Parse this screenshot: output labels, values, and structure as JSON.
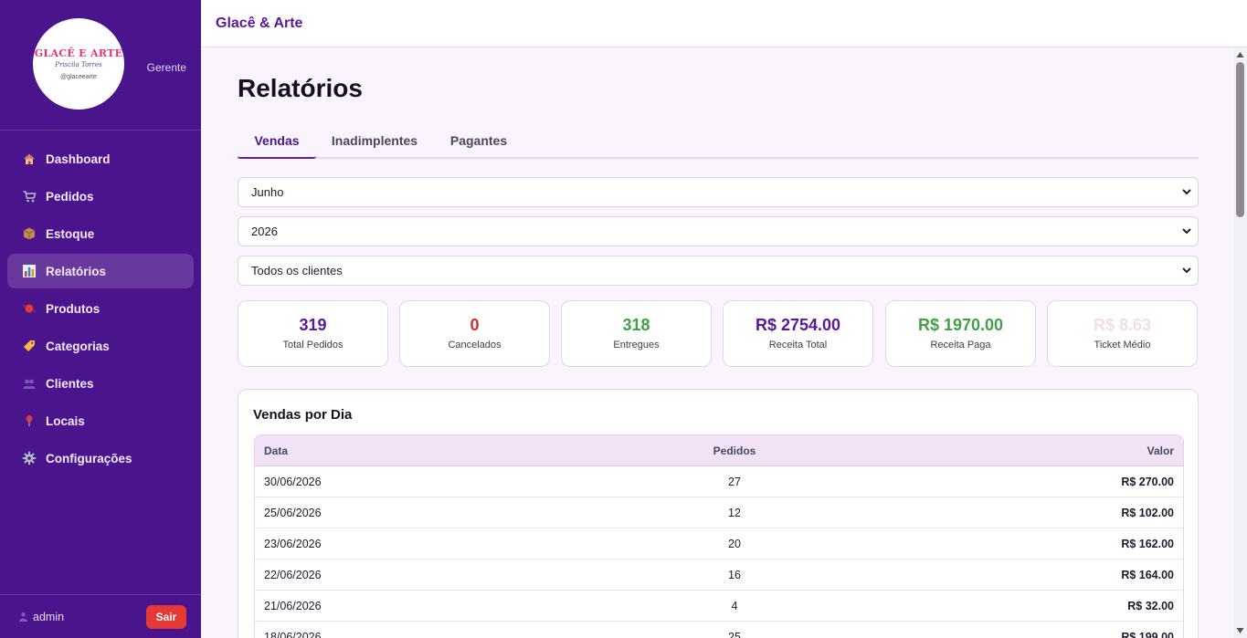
{
  "topbar": {
    "title": "Glacê & Arte"
  },
  "sidebar": {
    "logo": {
      "title": "GLACÊ E ARTE",
      "subtitle": "Priscila Torres",
      "handle": "@glaceearte"
    },
    "role": "Gerente",
    "items": [
      {
        "label": "Dashboard",
        "icon": "house-icon"
      },
      {
        "label": "Pedidos",
        "icon": "cart-icon"
      },
      {
        "label": "Estoque",
        "icon": "package-icon"
      },
      {
        "label": "Relatórios",
        "icon": "bar-chart-icon",
        "active": true
      },
      {
        "label": "Produtos",
        "icon": "candy-icon"
      },
      {
        "label": "Categorias",
        "icon": "tag-icon"
      },
      {
        "label": "Clientes",
        "icon": "users-icon"
      },
      {
        "label": "Locais",
        "icon": "pin-icon"
      },
      {
        "label": "Configurações",
        "icon": "gear-icon"
      }
    ],
    "footer": {
      "user": "admin",
      "logout": "Sair"
    }
  },
  "page": {
    "title": "Relatórios",
    "tabs": [
      "Vendas",
      "Inadimplentes",
      "Pagantes"
    ],
    "active_tab": "Vendas"
  },
  "filters": {
    "month": "Junho",
    "year": "2026",
    "client": "Todos os clientes"
  },
  "stats": [
    {
      "value": "319",
      "label": "Total Pedidos",
      "color": "#5b1797"
    },
    {
      "value": "0",
      "label": "Cancelados",
      "color": "#d32f2f"
    },
    {
      "value": "318",
      "label": "Entregues",
      "color": "#43a047"
    },
    {
      "value": "R$ 2754.00",
      "label": "Receita Total",
      "color": "#5b1797"
    },
    {
      "value": "R$ 1970.00",
      "label": "Receita Paga",
      "color": "#43a047"
    },
    {
      "value": "R$ 8.63",
      "label": "Ticket Médio",
      "color": "#f3dcec"
    }
  ],
  "sales": {
    "title": "Vendas por Dia",
    "columns": [
      "Data",
      "Pedidos",
      "Valor"
    ],
    "rows": [
      [
        "30/06/2026",
        "27",
        "R$ 270.00"
      ],
      [
        "25/06/2026",
        "12",
        "R$ 102.00"
      ],
      [
        "23/06/2026",
        "20",
        "R$ 162.00"
      ],
      [
        "22/06/2026",
        "16",
        "R$ 164.00"
      ],
      [
        "21/06/2026",
        "4",
        "R$ 32.00"
      ],
      [
        "18/06/2026",
        "25",
        "R$ 199.00"
      ]
    ]
  },
  "colors": {
    "sidebar": "#4a148c",
    "accent": "#6a1b9a",
    "danger": "#e53935"
  }
}
